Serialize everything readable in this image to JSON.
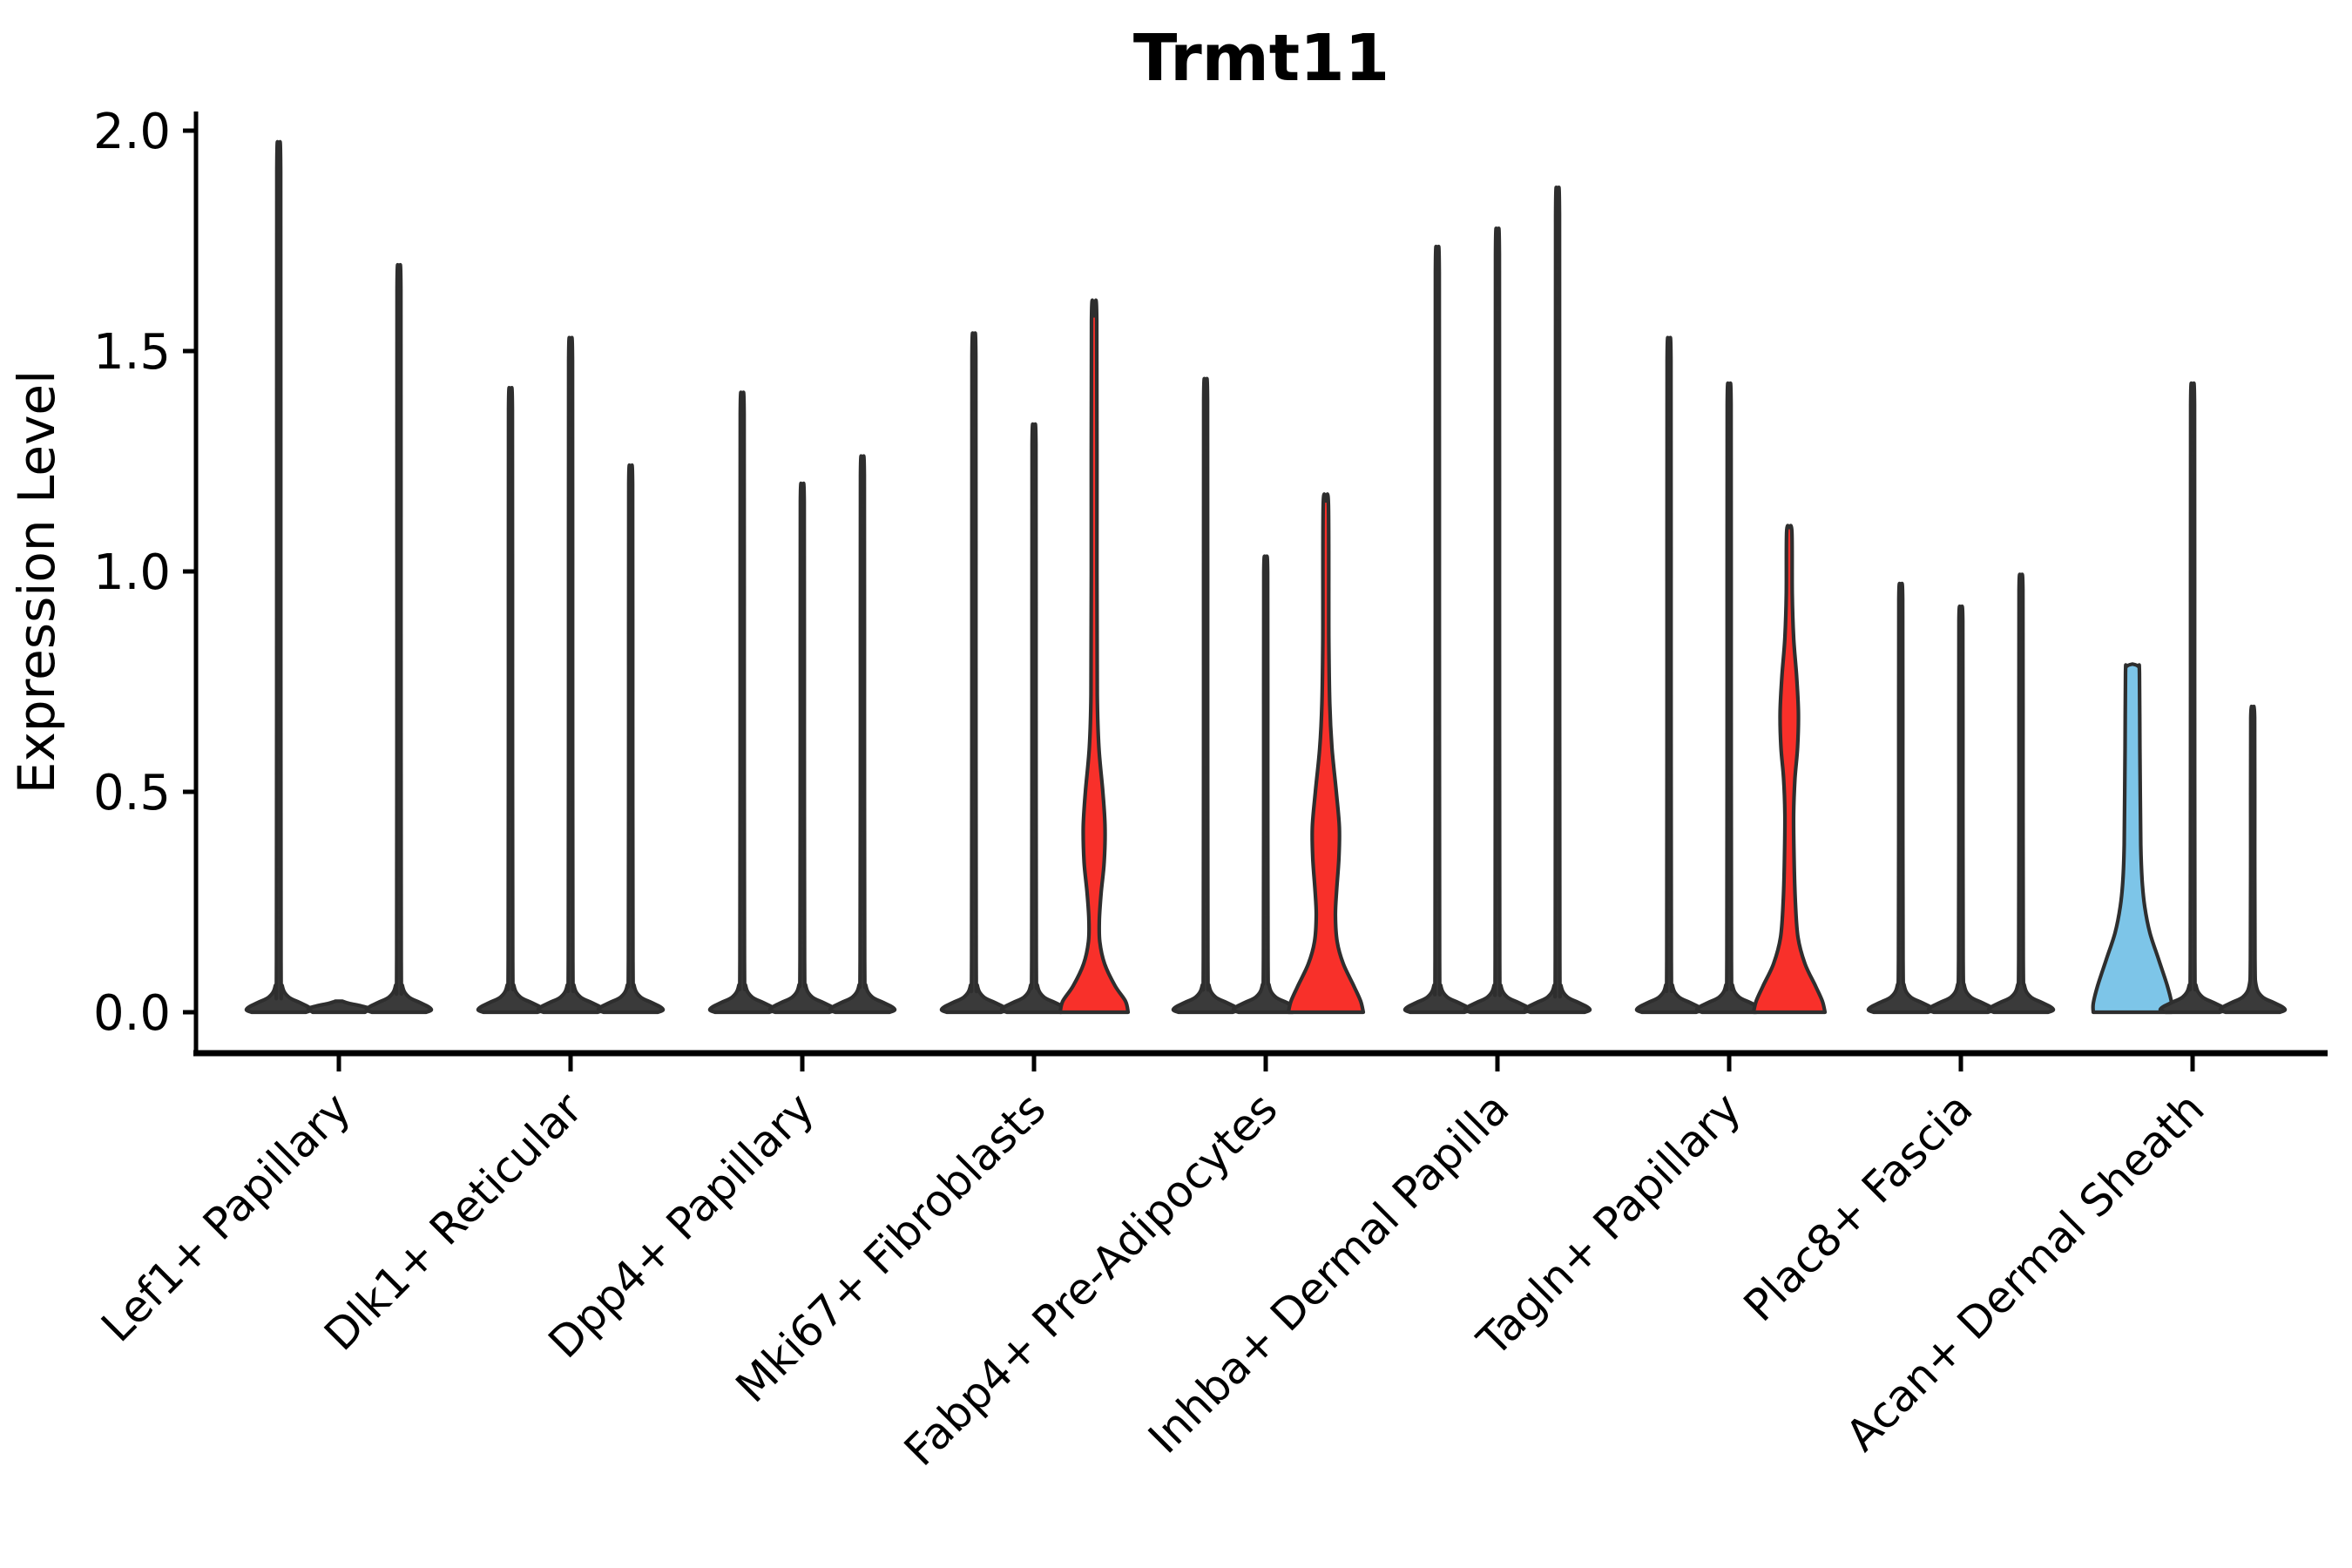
{
  "chart_data": {
    "type": "violin",
    "title": "Trmt11",
    "ylabel": "Expression Level",
    "xlabel": "",
    "ylim": [
      -0.093,
      2.05
    ],
    "ytick_values": [
      0.0,
      0.5,
      1.0,
      1.5,
      2.0
    ],
    "ytick_labels": [
      "0.0",
      "0.5",
      "1.0",
      "1.5",
      "2.0"
    ],
    "grid": false,
    "legend_position": "none",
    "palette": {
      "default": "#3a3a3a",
      "outline": "#2e2e2e",
      "red": "#f8302a",
      "blue": "#7dc5e8",
      "axis": "#000000"
    },
    "categories": [
      "Lef1+ Papillary",
      "Dlk1+ Reticular",
      "Dpp4+ Papillary",
      "Mki67+ Fibroblasts",
      "Fabp4+ Pre-Adipocytes",
      "Inhba+ Dermal Papilla",
      "Tagln+ Papillary",
      "Plac8+ Fascia",
      "Acan+ Dermal Sheath"
    ],
    "groups": [
      {
        "label": "Lef1+ Papillary",
        "violins": [
          {
            "max": 1.92,
            "color": "default",
            "shape": "spike"
          },
          {
            "max": 0.02,
            "color": "default",
            "shape": "flat"
          },
          {
            "max": 1.65,
            "color": "default",
            "shape": "spike"
          }
        ]
      },
      {
        "label": "Dlk1+ Reticular",
        "violins": [
          {
            "max": 1.38,
            "color": "default",
            "shape": "spike"
          },
          {
            "max": 1.49,
            "color": "default",
            "shape": "spike"
          },
          {
            "max": 1.21,
            "color": "default",
            "shape": "spike"
          }
        ]
      },
      {
        "label": "Dpp4+ Papillary",
        "violins": [
          {
            "max": 1.37,
            "color": "default",
            "shape": "spike"
          },
          {
            "max": 1.17,
            "color": "default",
            "shape": "spike"
          },
          {
            "max": 1.23,
            "color": "default",
            "shape": "spike"
          }
        ]
      },
      {
        "label": "Mki67+ Fibroblasts",
        "violins": [
          {
            "max": 1.5,
            "color": "default",
            "shape": "spike"
          },
          {
            "max": 1.3,
            "color": "default",
            "shape": "spike"
          },
          {
            "max": 1.58,
            "color": "red",
            "shape": "profile",
            "profile": [
              [
                1.58,
                0
              ],
              [
                1.57,
                3
              ],
              [
                1.0,
                3.2
              ],
              [
                0.72,
                3.6
              ],
              [
                0.6,
                5.5
              ],
              [
                0.5,
                10
              ],
              [
                0.42,
                12.5
              ],
              [
                0.34,
                11.5
              ],
              [
                0.27,
                8
              ],
              [
                0.21,
                6
              ],
              [
                0.16,
                6.5
              ],
              [
                0.11,
                12
              ],
              [
                0.06,
                24
              ],
              [
                0.025,
                36
              ],
              [
                0,
                39
              ]
            ]
          }
        ]
      },
      {
        "label": "Fabp4+ Pre-Adipocytes",
        "violins": [
          {
            "max": 1.4,
            "color": "default",
            "shape": "spike"
          },
          {
            "max": 1.01,
            "color": "default",
            "shape": "spike"
          },
          {
            "max": 1.16,
            "color": "red",
            "shape": "profile",
            "profile": [
              [
                1.16,
                0
              ],
              [
                1.15,
                3
              ],
              [
                0.85,
                3.4
              ],
              [
                0.7,
                4.5
              ],
              [
                0.6,
                7
              ],
              [
                0.5,
                12
              ],
              [
                0.42,
                15.5
              ],
              [
                0.35,
                15
              ],
              [
                0.28,
                12.5
              ],
              [
                0.22,
                11
              ],
              [
                0.16,
                13
              ],
              [
                0.11,
                20
              ],
              [
                0.06,
                32
              ],
              [
                0.025,
                40
              ],
              [
                0,
                43
              ]
            ]
          }
        ]
      },
      {
        "label": "Inhba+ Dermal Papilla",
        "violins": [
          {
            "max": 1.69,
            "color": "default",
            "shape": "spike"
          },
          {
            "max": 1.73,
            "color": "default",
            "shape": "spike"
          },
          {
            "max": 1.82,
            "color": "default",
            "shape": "spike"
          }
        ]
      },
      {
        "label": "Tagln+ Papillary",
        "violins": [
          {
            "max": 1.49,
            "color": "default",
            "shape": "spike"
          },
          {
            "max": 1.39,
            "color": "default",
            "shape": "spike"
          },
          {
            "max": 1.1,
            "color": "red",
            "shape": "profile",
            "profile": [
              [
                1.1,
                0
              ],
              [
                1.09,
                3
              ],
              [
                0.95,
                3.4
              ],
              [
                0.85,
                5
              ],
              [
                0.76,
                8.5
              ],
              [
                0.68,
                10.5
              ],
              [
                0.6,
                9.5
              ],
              [
                0.53,
                6.5
              ],
              [
                0.45,
                5
              ],
              [
                0.35,
                5.5
              ],
              [
                0.25,
                7
              ],
              [
                0.17,
                10
              ],
              [
                0.11,
                18
              ],
              [
                0.06,
                30
              ],
              [
                0.025,
                38
              ],
              [
                0,
                41
              ]
            ]
          }
        ]
      },
      {
        "label": "Plac8+ Fascia",
        "violins": [
          {
            "max": 0.95,
            "color": "default",
            "shape": "spike"
          },
          {
            "max": 0.9,
            "color": "default",
            "shape": "spike"
          },
          {
            "max": 0.97,
            "color": "default",
            "shape": "spike"
          }
        ]
      },
      {
        "label": "Acan+ Dermal Sheath",
        "violins": [
          {
            "max": 0.79,
            "color": "blue",
            "shape": "profile",
            "profile": [
              [
                0.79,
                0
              ],
              [
                0.785,
                6.5
              ],
              [
                0.77,
                8
              ],
              [
                0.6,
                8.5
              ],
              [
                0.48,
                9
              ],
              [
                0.38,
                9.5
              ],
              [
                0.3,
                11
              ],
              [
                0.24,
                14
              ],
              [
                0.18,
                20
              ],
              [
                0.12,
                30
              ],
              [
                0.06,
                40
              ],
              [
                0.02,
                45
              ],
              [
                0,
                45
              ]
            ]
          },
          {
            "max": 1.39,
            "color": "default",
            "shape": "spike"
          },
          {
            "max": 0.68,
            "color": "default",
            "shape": "spike"
          }
        ]
      }
    ]
  }
}
